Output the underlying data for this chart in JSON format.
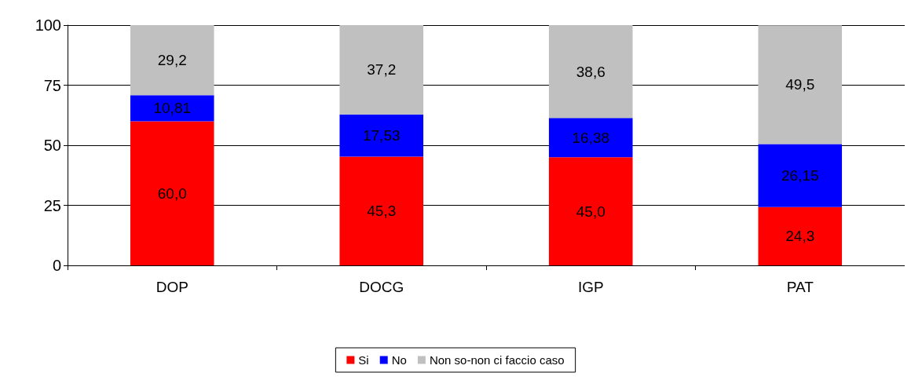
{
  "chart_data": {
    "type": "bar",
    "stacked": true,
    "categories": [
      "DOP",
      "DOCG",
      "IGP",
      "PAT"
    ],
    "series": [
      {
        "name": "Si",
        "color": "#ff0000",
        "values": [
          60.0,
          45.3,
          45.0,
          24.3
        ],
        "value_labels": [
          "60,0",
          "45,3",
          "45,0",
          "24,3"
        ]
      },
      {
        "name": "No",
        "color": "#0000ff",
        "values": [
          10.81,
          17.53,
          16.38,
          26.15
        ],
        "value_labels": [
          "10,81",
          "17,53",
          "16,38",
          "26,15"
        ]
      },
      {
        "name": "Non so-non ci faccio caso",
        "color": "#c0c0c0",
        "values": [
          29.2,
          37.2,
          38.6,
          49.5
        ],
        "value_labels": [
          "29,2",
          "37,2",
          "38,6",
          "49,5"
        ]
      }
    ],
    "ylim": [
      0,
      100
    ],
    "yticks": [
      0,
      25,
      50,
      75,
      100
    ],
    "grid": "y",
    "legend": "bottom"
  }
}
